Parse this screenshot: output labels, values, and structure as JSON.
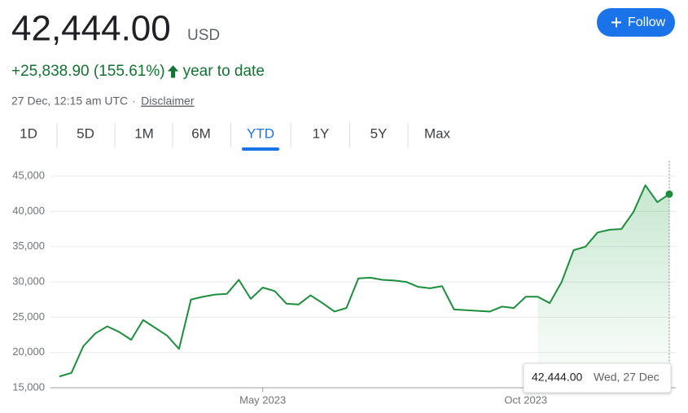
{
  "header": {
    "price": "42,444.00",
    "currency": "USD",
    "follow": "Follow",
    "change": "+25,838.90 (155.61%)",
    "period": "year to date",
    "timestamp": "27 Dec, 12:15 am UTC",
    "separator": "·",
    "disclaimer": "Disclaimer"
  },
  "tabs": [
    "1D",
    "5D",
    "1M",
    "6M",
    "YTD",
    "1Y",
    "5Y",
    "Max"
  ],
  "active_tab": "YTD",
  "tooltip": {
    "value": "42,444.00",
    "date": "Wed, 27 Dec"
  },
  "chart_data": {
    "type": "line",
    "categories": [
      null,
      null,
      null,
      null,
      null,
      null,
      null,
      null,
      null,
      null,
      null,
      null,
      null,
      null,
      null,
      null,
      null,
      "May 2023",
      null,
      null,
      null,
      null,
      null,
      null,
      null,
      null,
      null,
      null,
      null,
      null,
      null,
      null,
      null,
      null,
      null,
      null,
      null,
      null,
      null,
      "Oct 2023",
      null,
      null,
      null,
      null,
      null,
      null,
      null,
      null,
      null,
      null,
      null,
      null
    ],
    "series": [
      {
        "name": "Price",
        "color": "#1e8e3e",
        "values": [
          16600,
          17100,
          20900,
          22700,
          23700,
          22900,
          21800,
          24600,
          23500,
          22400,
          20500,
          27500,
          27900,
          28200,
          28300,
          30300,
          27600,
          29200,
          28700,
          26900,
          26800,
          28100,
          27000,
          25800,
          26300,
          30500,
          30600,
          30300,
          30200,
          30000,
          29300,
          29100,
          29400,
          26100,
          26000,
          25900,
          25800,
          26500,
          26300,
          27900,
          27900,
          27000,
          30000,
          34500,
          35000,
          37000,
          37400,
          37500,
          39900,
          43700,
          41300,
          42444
        ]
      }
    ],
    "ylim": [
      15000,
      46000
    ],
    "yticks": [
      {
        "value": 15000,
        "label": "15,000"
      },
      {
        "value": 20000,
        "label": "20,000"
      },
      {
        "value": 25000,
        "label": "25,000"
      },
      {
        "value": 30000,
        "label": "30,000"
      },
      {
        "value": 35000,
        "label": "35,000"
      },
      {
        "value": 40000,
        "label": "40,000"
      },
      {
        "value": 45000,
        "label": "45,000"
      }
    ],
    "grid": true
  }
}
